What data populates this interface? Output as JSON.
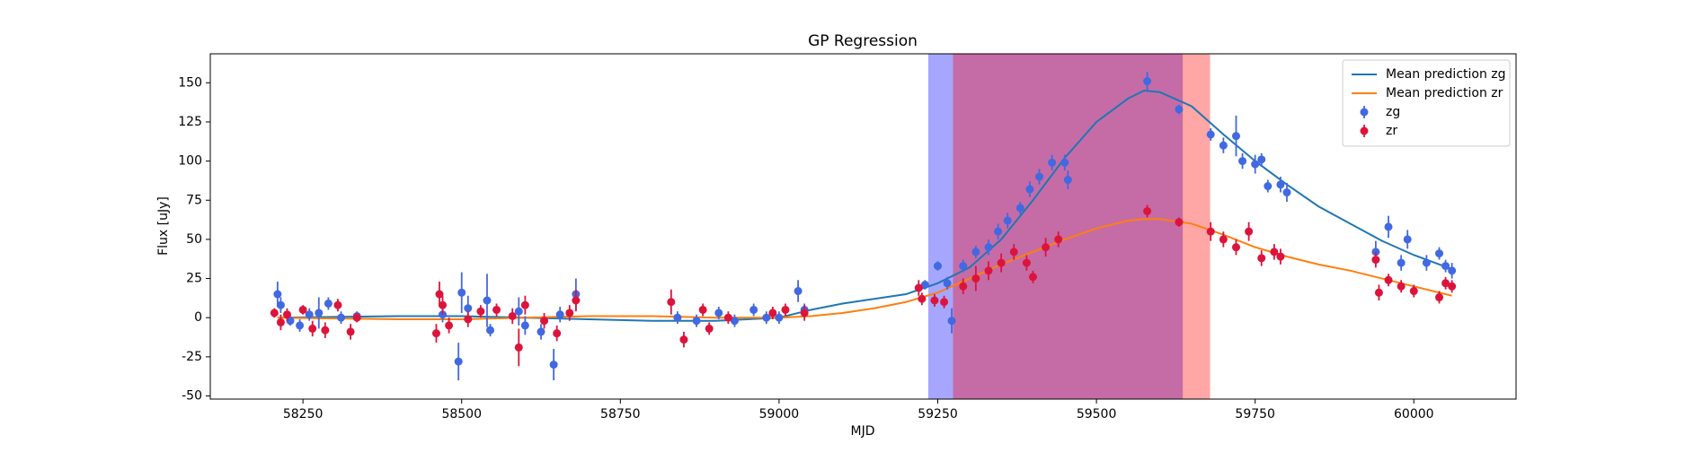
{
  "chart_data": {
    "type": "gp-regression",
    "title": "GP Regression",
    "xlabel": "MJD",
    "ylabel": "Flux [uJy]",
    "xlim": [
      58104,
      60161
    ],
    "ylim": [
      -52,
      168.5
    ],
    "xticks": [
      58250,
      58500,
      58750,
      59000,
      59250,
      59500,
      59750,
      60000
    ],
    "yticks": [
      -50,
      -25,
      0,
      25,
      50,
      75,
      100,
      125,
      150
    ],
    "legend": "upper right",
    "spans": [
      {
        "range": [
          59235,
          59636
        ],
        "color": "#0000ff"
      },
      {
        "range": [
          59274,
          59679
        ],
        "color": "#ff0000"
      }
    ],
    "series": [
      {
        "name": "Mean prediction zg",
        "type": "line",
        "color": "#1f77b4",
        "x": [
          58210,
          58300,
          58400,
          58500,
          58600,
          58700,
          58800,
          58900,
          59000,
          59050,
          59100,
          59150,
          59200,
          59250,
          59300,
          59350,
          59400,
          59450,
          59500,
          59550,
          59575,
          59600,
          59650,
          59700,
          59750,
          59800,
          59850,
          59900,
          59950,
          60000,
          60060
        ],
        "values": [
          0,
          0.5,
          1,
          1,
          0,
          -1,
          -2,
          -2,
          0,
          5,
          9,
          12,
          15,
          22,
          32,
          50,
          75,
          102,
          125,
          140,
          145,
          144,
          135,
          117,
          100,
          85,
          71,
          60,
          49,
          40,
          31
        ]
      },
      {
        "name": "Mean prediction zr",
        "type": "line",
        "color": "#ff7f0e",
        "x": [
          58210,
          58300,
          58400,
          58500,
          58600,
          58700,
          58800,
          58900,
          59000,
          59050,
          59100,
          59150,
          59200,
          59250,
          59300,
          59350,
          59400,
          59450,
          59500,
          59550,
          59575,
          59600,
          59650,
          59700,
          59750,
          59800,
          59850,
          59900,
          59950,
          60000,
          60060
        ],
        "values": [
          0,
          -0.5,
          -1,
          -1,
          0,
          1,
          1,
          0,
          0,
          1,
          3,
          6,
          10,
          16,
          25,
          34,
          42,
          50,
          57,
          62,
          63,
          63,
          60,
          53,
          45,
          39,
          34,
          30,
          25,
          20,
          14
        ]
      },
      {
        "name": "zg",
        "type": "errorbar",
        "color": "#4169e1",
        "x": [
          58210,
          58215,
          58230,
          58245,
          58260,
          58275,
          58290,
          58310,
          58335,
          58470,
          58495,
          58500,
          58510,
          58540,
          58545,
          58590,
          58600,
          58625,
          58645,
          58655,
          58680,
          58840,
          58870,
          58905,
          58930,
          58960,
          58980,
          59000,
          59030,
          59040,
          59230,
          59250,
          59265,
          59272,
          59290,
          59310,
          59330,
          59345,
          59360,
          59380,
          59395,
          59410,
          59430,
          59450,
          59455,
          59580,
          59630,
          59680,
          59700,
          59720,
          59730,
          59750,
          59760,
          59770,
          59790,
          59800,
          59940,
          59960,
          59980,
          59990,
          60020,
          60040,
          60050,
          60060
        ],
        "values": [
          15,
          8,
          -2,
          -5,
          2,
          3,
          9,
          0,
          1,
          2,
          -28,
          16,
          6,
          11,
          -8,
          4,
          -5,
          -9,
          -30,
          2,
          15,
          0,
          -2,
          3,
          -2,
          5,
          0,
          0,
          17,
          5,
          21,
          33,
          22,
          -2,
          33,
          42,
          45,
          55,
          62,
          70,
          82,
          90,
          99,
          99,
          88,
          151,
          133,
          117,
          110,
          116,
          100,
          98,
          101,
          84,
          85,
          80,
          42,
          58,
          35,
          50,
          35,
          41,
          33,
          30
        ],
        "errors": [
          8,
          5,
          3,
          4,
          4,
          10,
          4,
          4,
          3,
          5,
          12,
          13,
          8,
          17,
          4,
          9,
          6,
          5,
          10,
          5,
          10,
          4,
          4,
          4,
          4,
          4,
          4,
          4,
          7,
          4,
          3,
          3,
          4,
          8,
          4,
          4,
          5,
          5,
          5,
          4,
          5,
          5,
          5,
          5,
          6,
          6,
          3,
          4,
          5,
          13,
          5,
          6,
          4,
          4,
          5,
          6,
          7,
          7,
          5,
          6,
          5,
          4,
          4,
          5
        ]
      },
      {
        "name": "zr",
        "type": "errorbar",
        "color": "#dc143c",
        "x": [
          58205,
          58215,
          58225,
          58250,
          58265,
          58285,
          58305,
          58325,
          58335,
          58460,
          58465,
          58470,
          58480,
          58510,
          58530,
          58555,
          58580,
          58590,
          58600,
          58630,
          58650,
          58670,
          58680,
          58830,
          58850,
          58880,
          58890,
          58920,
          58990,
          59010,
          59040,
          59220,
          59225,
          59245,
          59260,
          59290,
          59310,
          59330,
          59350,
          59370,
          59390,
          59400,
          59420,
          59440,
          59580,
          59630,
          59680,
          59700,
          59720,
          59740,
          59760,
          59780,
          59790,
          59940,
          59945,
          59960,
          59980,
          60000,
          60040,
          60050,
          60060
        ],
        "values": [
          3,
          -3,
          2,
          5,
          -7,
          -8,
          8,
          -9,
          0,
          -10,
          15,
          8,
          -5,
          -1,
          4,
          5,
          1,
          -19,
          8,
          -2,
          -10,
          3,
          11,
          10,
          -14,
          5,
          -7,
          0,
          3,
          5,
          3,
          19,
          12,
          11,
          10,
          20,
          25,
          30,
          35,
          42,
          35,
          26,
          45,
          50,
          68,
          61,
          55,
          50,
          45,
          55,
          38,
          42,
          39,
          37,
          16,
          24,
          20,
          17,
          13,
          22,
          20
        ],
        "errors": [
          3,
          5,
          4,
          3,
          5,
          5,
          4,
          5,
          3,
          6,
          8,
          6,
          5,
          5,
          4,
          4,
          5,
          12,
          6,
          5,
          5,
          5,
          7,
          8,
          5,
          4,
          4,
          4,
          4,
          4,
          5,
          5,
          4,
          4,
          4,
          5,
          8,
          6,
          6,
          5,
          5,
          4,
          6,
          5,
          4,
          3,
          6,
          5,
          5,
          6,
          5,
          5,
          5,
          5,
          5,
          4,
          4,
          4,
          4,
          4,
          4
        ]
      }
    ]
  }
}
